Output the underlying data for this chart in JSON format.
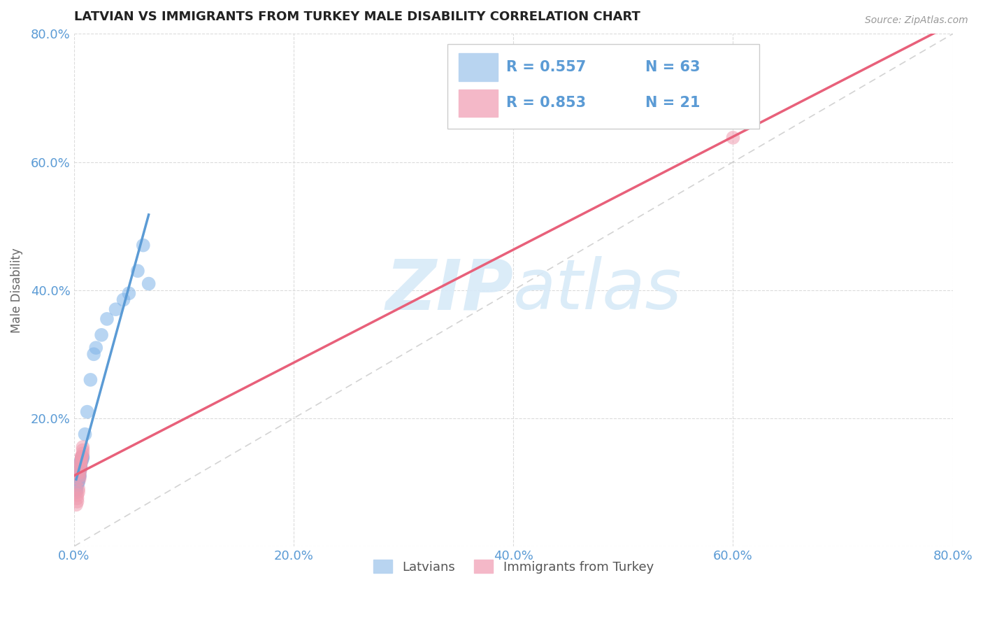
{
  "title": "LATVIAN VS IMMIGRANTS FROM TURKEY MALE DISABILITY CORRELATION CHART",
  "source": "Source: ZipAtlas.com",
  "ylabel": "Male Disability",
  "xlim": [
    0.0,
    0.8
  ],
  "ylim": [
    0.0,
    0.8
  ],
  "xtick_vals": [
    0.0,
    0.2,
    0.4,
    0.6,
    0.8
  ],
  "ytick_vals": [
    0.0,
    0.2,
    0.4,
    0.6,
    0.8
  ],
  "xtick_labels": [
    "0.0%",
    "20.0%",
    "40.0%",
    "60.0%",
    "80.0%"
  ],
  "ytick_labels": [
    "",
    "20.0%",
    "40.0%",
    "60.0%",
    "80.0%"
  ],
  "blue_color": "#5b9bd5",
  "pink_color": "#e8607a",
  "blue_scatter_color": "#7fb3e8",
  "pink_scatter_color": "#f09cb0",
  "blue_legend_color": "#b8d4f0",
  "pink_legend_color": "#f4b8c8",
  "watermark_color": "#d8eaf8",
  "blue_R": "0.557",
  "blue_N": "63",
  "pink_R": "0.853",
  "pink_N": "21",
  "blue_scatter_x": [
    0.003,
    0.005,
    0.004,
    0.002,
    0.006,
    0.005,
    0.004,
    0.003,
    0.002,
    0.003,
    0.004,
    0.005,
    0.007,
    0.008,
    0.006,
    0.005,
    0.002,
    0.007,
    0.006,
    0.003,
    0.005,
    0.004,
    0.002,
    0.005,
    0.004,
    0.003,
    0.003,
    0.004,
    0.005,
    0.006,
    0.007,
    0.008,
    0.002,
    0.006,
    0.005,
    0.003,
    0.006,
    0.007,
    0.004,
    0.004,
    0.005,
    0.006,
    0.002,
    0.005,
    0.004,
    0.003,
    0.003,
    0.006,
    0.005,
    0.006,
    0.01,
    0.012,
    0.015,
    0.018,
    0.02,
    0.025,
    0.03,
    0.038,
    0.045,
    0.05,
    0.058,
    0.063,
    0.068
  ],
  "blue_scatter_y": [
    0.105,
    0.115,
    0.1,
    0.095,
    0.125,
    0.11,
    0.105,
    0.1,
    0.09,
    0.1,
    0.11,
    0.12,
    0.135,
    0.14,
    0.125,
    0.118,
    0.085,
    0.138,
    0.13,
    0.1,
    0.108,
    0.102,
    0.098,
    0.118,
    0.112,
    0.095,
    0.103,
    0.107,
    0.122,
    0.13,
    0.133,
    0.138,
    0.088,
    0.125,
    0.11,
    0.098,
    0.128,
    0.135,
    0.105,
    0.112,
    0.12,
    0.132,
    0.095,
    0.118,
    0.11,
    0.102,
    0.098,
    0.128,
    0.113,
    0.123,
    0.175,
    0.21,
    0.26,
    0.3,
    0.31,
    0.33,
    0.355,
    0.37,
    0.385,
    0.395,
    0.43,
    0.47,
    0.41
  ],
  "pink_scatter_x": [
    0.002,
    0.003,
    0.003,
    0.004,
    0.005,
    0.006,
    0.006,
    0.007,
    0.008,
    0.005,
    0.003,
    0.004,
    0.006,
    0.007,
    0.008,
    0.007,
    0.005,
    0.006,
    0.007,
    0.008,
    0.6
  ],
  "pink_scatter_y": [
    0.065,
    0.075,
    0.08,
    0.09,
    0.11,
    0.12,
    0.13,
    0.14,
    0.145,
    0.105,
    0.07,
    0.085,
    0.125,
    0.14,
    0.155,
    0.135,
    0.115,
    0.13,
    0.14,
    0.15,
    0.638
  ]
}
